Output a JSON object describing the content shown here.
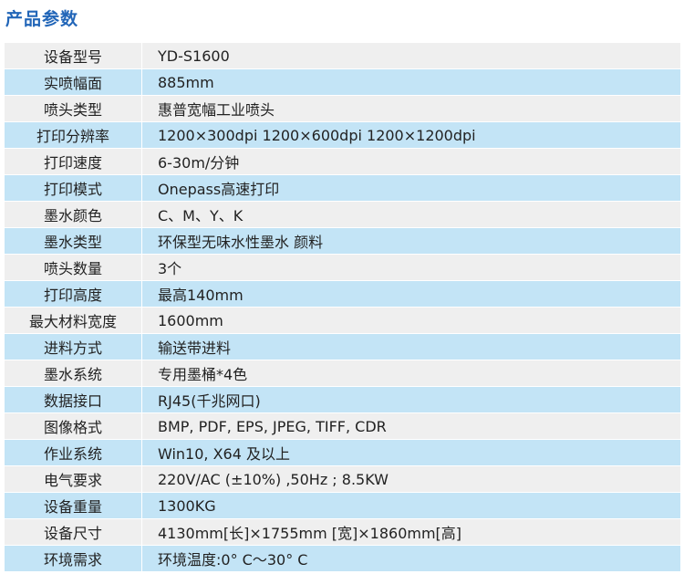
{
  "header": {
    "title": "产品参数"
  },
  "table": {
    "rows": [
      [
        "设备型号",
        "YD-S1600"
      ],
      [
        "实喷幅面",
        "885mm"
      ],
      [
        "喷头类型",
        "惠普宽幅工业喷头"
      ],
      [
        "打印分辨率",
        "1200×300dpi  1200×600dpi  1200×1200dpi"
      ],
      [
        "打印速度",
        "6-30m/分钟"
      ],
      [
        "打印模式",
        "Onepass高速打印"
      ],
      [
        "墨水颜色",
        "C、M、Y、K"
      ],
      [
        "墨水类型",
        "环保型无味水性墨水 颜料"
      ],
      [
        "喷头数量",
        "3个"
      ],
      [
        "打印高度",
        "最高140mm"
      ],
      [
        "最大材料宽度",
        "1600mm"
      ],
      [
        "进料方式",
        "输送带进料"
      ],
      [
        "墨水系统",
        "专用墨桶*4色"
      ],
      [
        "数据接口",
        "RJ45(千兆网口)"
      ],
      [
        "图像格式",
        "BMP, PDF, EPS, JPEG, TIFF, CDR"
      ],
      [
        "作业系统",
        "Win10, X64 及以上"
      ],
      [
        "电气要求",
        "220V/AC (±10%) ,50Hz ; 8.5KW"
      ],
      [
        "设备重量",
        "1300KG"
      ],
      [
        "设备尺寸",
        "4130mm[长]×1755mm [宽]×1860mm[高]"
      ],
      [
        "环境需求",
        "环境温度:0° C～30° C"
      ]
    ]
  }
}
